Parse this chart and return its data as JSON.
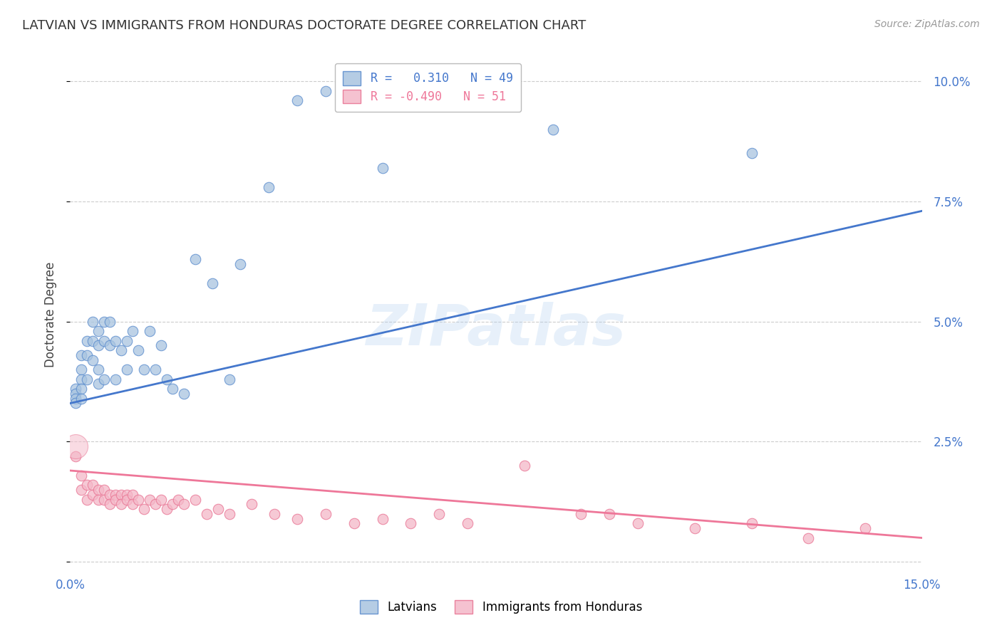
{
  "title": "LATVIAN VS IMMIGRANTS FROM HONDURAS DOCTORATE DEGREE CORRELATION CHART",
  "source": "Source: ZipAtlas.com",
  "ylabel": "Doctorate Degree",
  "yticks": [
    0.0,
    0.025,
    0.05,
    0.075,
    0.1
  ],
  "xlim": [
    0.0,
    0.15
  ],
  "ylim": [
    -0.002,
    0.105
  ],
  "legend_blue_r": "0.310",
  "legend_blue_n": "49",
  "legend_pink_r": "-0.490",
  "legend_pink_n": "51",
  "blue_color": "#A8C4E0",
  "pink_color": "#F4B8C8",
  "blue_edge_color": "#5588CC",
  "pink_edge_color": "#E87090",
  "blue_line_color": "#4477CC",
  "pink_line_color": "#EE7799",
  "watermark": "ZIPatlas",
  "blue_scatter_x": [
    0.001,
    0.001,
    0.001,
    0.001,
    0.002,
    0.002,
    0.002,
    0.002,
    0.002,
    0.003,
    0.003,
    0.003,
    0.004,
    0.004,
    0.004,
    0.005,
    0.005,
    0.005,
    0.005,
    0.006,
    0.006,
    0.006,
    0.007,
    0.007,
    0.008,
    0.008,
    0.009,
    0.01,
    0.01,
    0.011,
    0.012,
    0.013,
    0.014,
    0.015,
    0.016,
    0.017,
    0.018,
    0.02,
    0.022,
    0.025,
    0.028,
    0.03,
    0.035,
    0.04,
    0.045,
    0.05,
    0.055,
    0.085,
    0.12
  ],
  "blue_scatter_y": [
    0.036,
    0.035,
    0.034,
    0.033,
    0.043,
    0.04,
    0.038,
    0.036,
    0.034,
    0.046,
    0.043,
    0.038,
    0.05,
    0.046,
    0.042,
    0.048,
    0.045,
    0.04,
    0.037,
    0.05,
    0.046,
    0.038,
    0.05,
    0.045,
    0.046,
    0.038,
    0.044,
    0.046,
    0.04,
    0.048,
    0.044,
    0.04,
    0.048,
    0.04,
    0.045,
    0.038,
    0.036,
    0.035,
    0.063,
    0.058,
    0.038,
    0.062,
    0.078,
    0.096,
    0.098,
    0.096,
    0.082,
    0.09,
    0.085
  ],
  "pink_scatter_x": [
    0.001,
    0.002,
    0.002,
    0.003,
    0.003,
    0.004,
    0.004,
    0.005,
    0.005,
    0.006,
    0.006,
    0.007,
    0.007,
    0.008,
    0.008,
    0.009,
    0.009,
    0.01,
    0.01,
    0.011,
    0.011,
    0.012,
    0.013,
    0.014,
    0.015,
    0.016,
    0.017,
    0.018,
    0.019,
    0.02,
    0.022,
    0.024,
    0.026,
    0.028,
    0.032,
    0.036,
    0.04,
    0.045,
    0.05,
    0.055,
    0.06,
    0.065,
    0.07,
    0.08,
    0.09,
    0.095,
    0.1,
    0.11,
    0.12,
    0.13,
    0.14
  ],
  "pink_scatter_y": [
    0.022,
    0.018,
    0.015,
    0.016,
    0.013,
    0.016,
    0.014,
    0.015,
    0.013,
    0.015,
    0.013,
    0.014,
    0.012,
    0.014,
    0.013,
    0.014,
    0.012,
    0.014,
    0.013,
    0.014,
    0.012,
    0.013,
    0.011,
    0.013,
    0.012,
    0.013,
    0.011,
    0.012,
    0.013,
    0.012,
    0.013,
    0.01,
    0.011,
    0.01,
    0.012,
    0.01,
    0.009,
    0.01,
    0.008,
    0.009,
    0.008,
    0.01,
    0.008,
    0.02,
    0.01,
    0.01,
    0.008,
    0.007,
    0.008,
    0.005,
    0.007
  ],
  "pink_big_x": [
    0.001
  ],
  "pink_big_y": [
    0.024
  ],
  "blue_line_x": [
    0.0,
    0.15
  ],
  "blue_line_y": [
    0.033,
    0.073
  ],
  "pink_line_x": [
    0.0,
    0.15
  ],
  "pink_line_y": [
    0.019,
    0.005
  ]
}
